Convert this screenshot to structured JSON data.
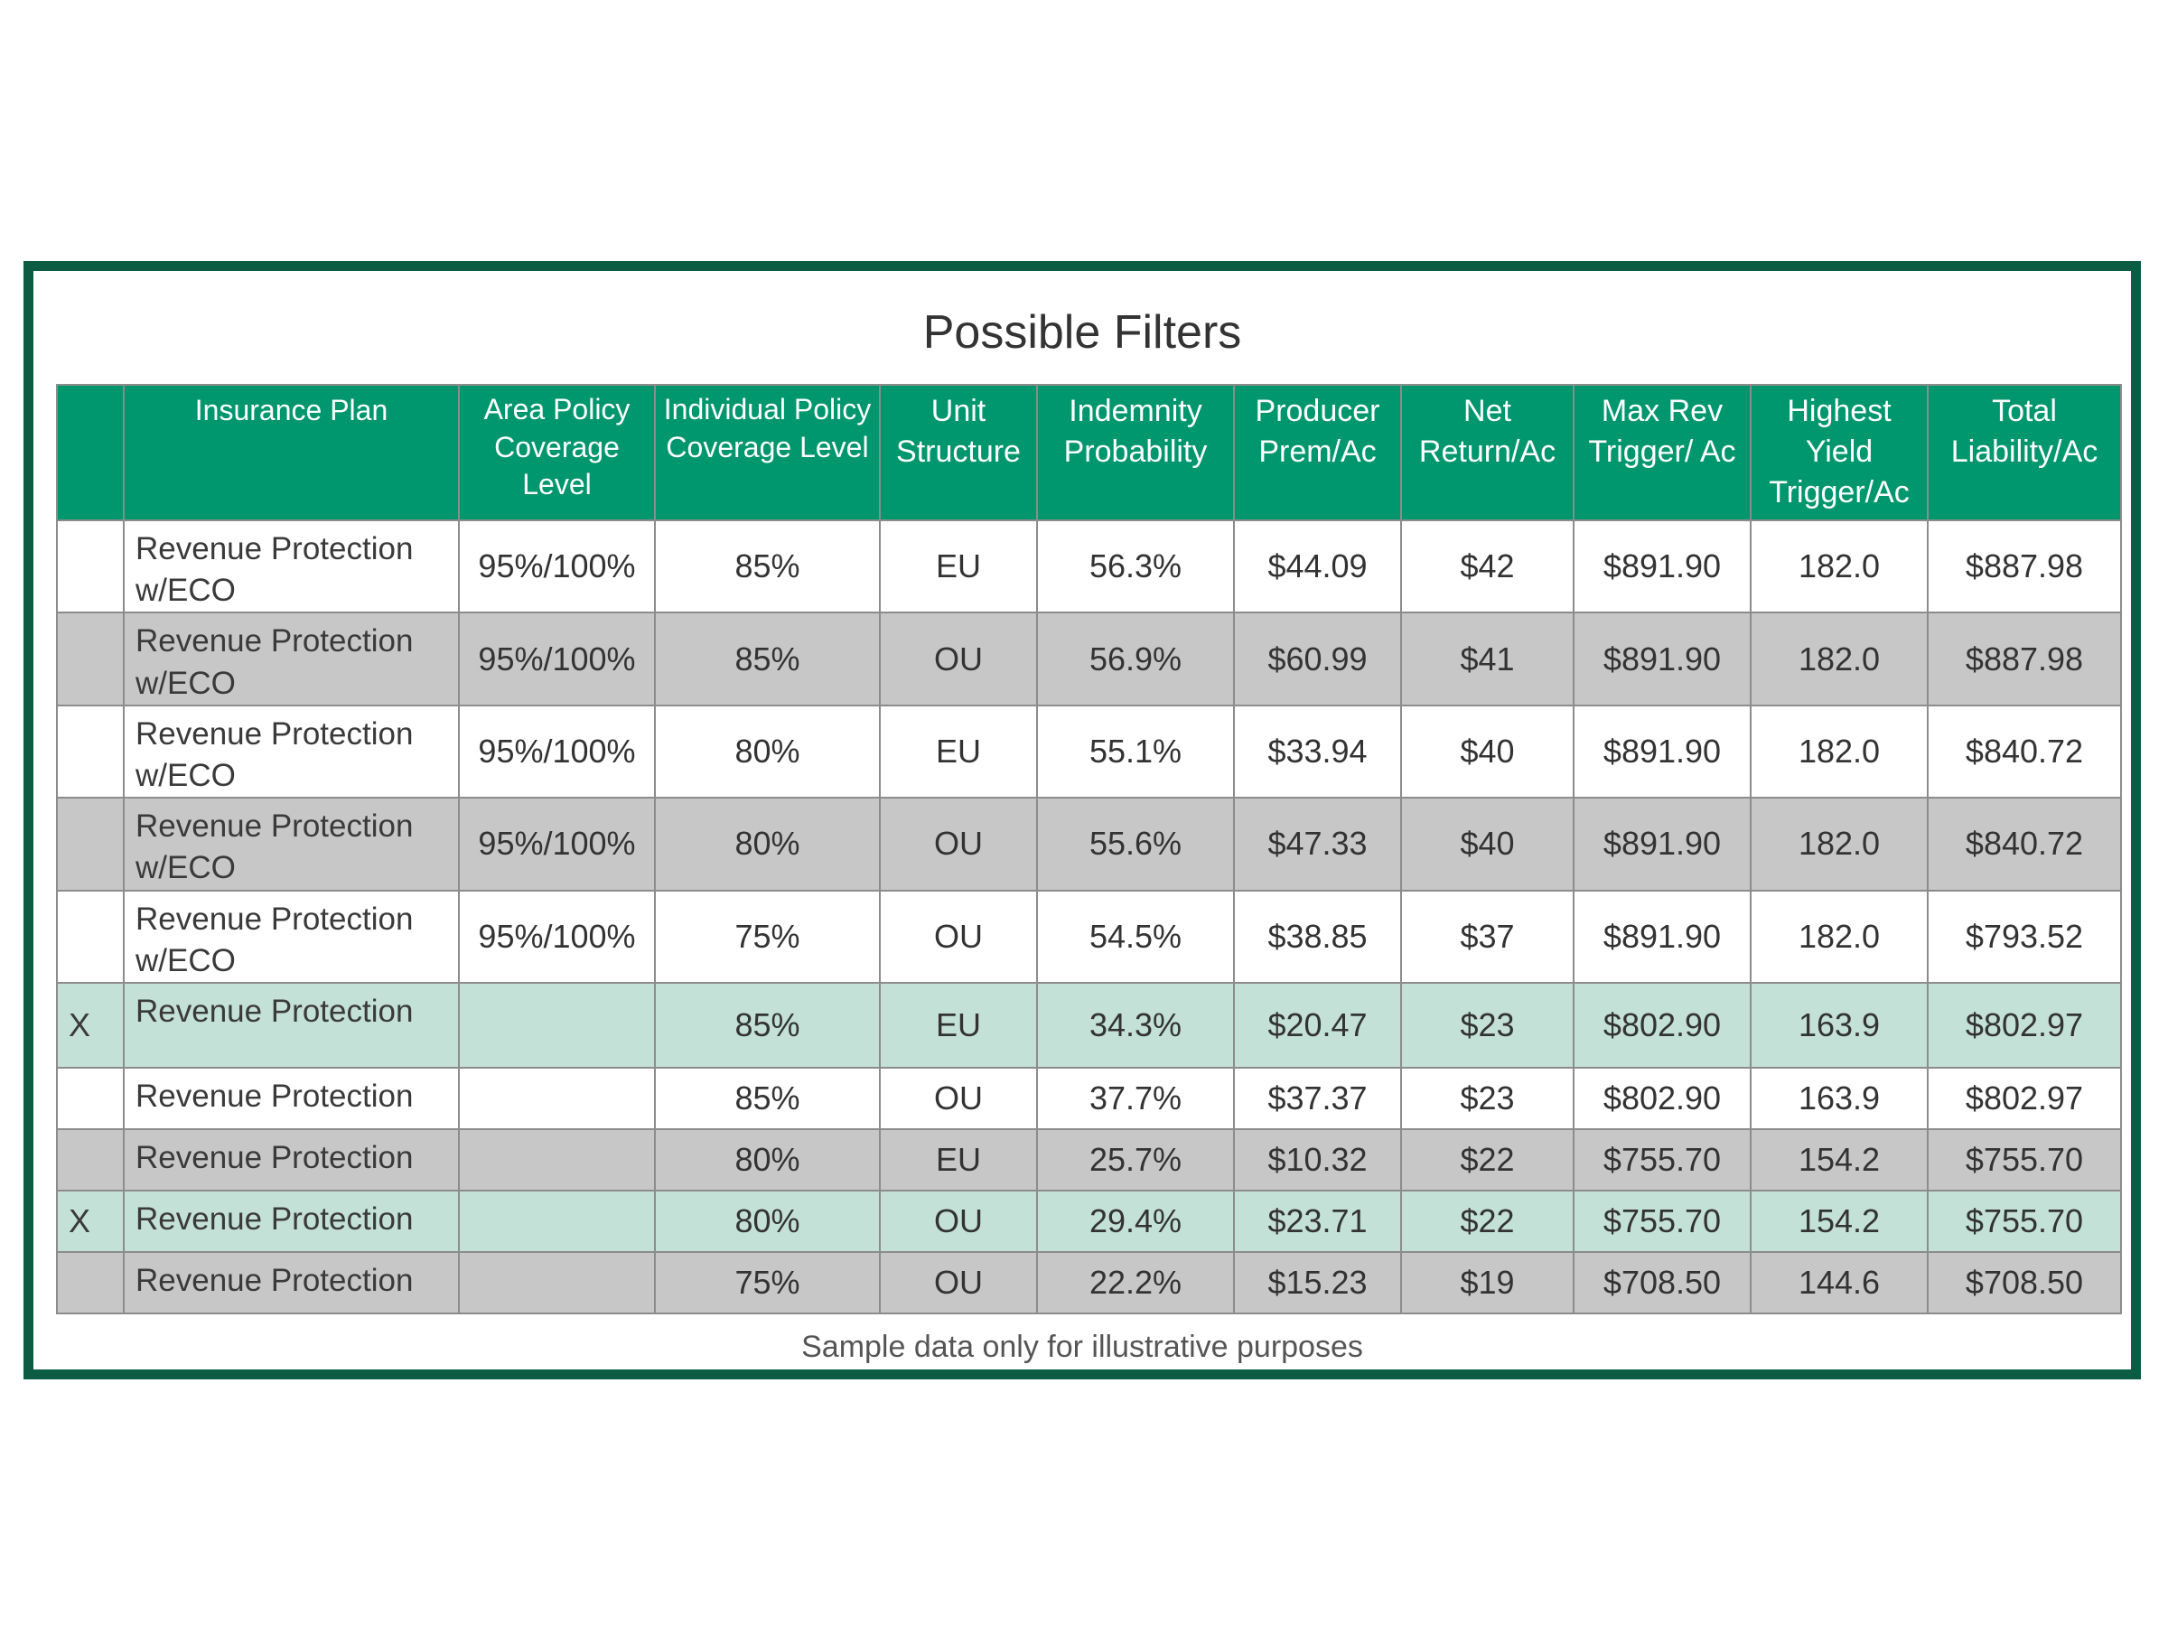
{
  "title": "Possible Filters",
  "footnote": "Sample data only for illustrative purposes",
  "colors": {
    "frame_border": "#0b5c42",
    "header_background": "#00966e",
    "row_white": "#ffffff",
    "row_gray": "#c8c7c7",
    "row_selected_green": "#c4e1d7"
  },
  "columns": [
    "",
    "Insurance Plan",
    "Area Policy Coverage Level",
    "Individual Policy Coverage Level",
    "Unit Structure",
    "Indemnity Probability",
    "Producer Prem/Ac",
    "Net Return/Ac",
    "Max Rev Trigger/ Ac",
    "Highest Yield Trigger/Ac",
    "Total Liability/Ac"
  ],
  "rows": [
    [
      "",
      "Revenue Protection w/ECO",
      "95%/100%",
      "85%",
      "EU",
      "56.3%",
      "$44.09",
      "$42",
      "$891.90",
      "182.0",
      "$887.98"
    ],
    [
      "",
      "Revenue Protection w/ECO",
      "95%/100%",
      "85%",
      "OU",
      "56.9%",
      "$60.99",
      "$41",
      "$891.90",
      "182.0",
      "$887.98"
    ],
    [
      "",
      "Revenue Protection w/ECO",
      "95%/100%",
      "80%",
      "EU",
      "55.1%",
      "$33.94",
      "$40",
      "$891.90",
      "182.0",
      "$840.72"
    ],
    [
      "",
      "Revenue Protection w/ECO",
      "95%/100%",
      "80%",
      "OU",
      "55.6%",
      "$47.33",
      "$40",
      "$891.90",
      "182.0",
      "$840.72"
    ],
    [
      "",
      "Revenue Protection w/ECO",
      "95%/100%",
      "75%",
      "OU",
      "54.5%",
      "$38.85",
      "$37",
      "$891.90",
      "182.0",
      "$793.52"
    ],
    [
      "X",
      "Revenue Protection",
      "",
      "85%",
      "EU",
      "34.3%",
      "$20.47",
      "$23",
      "$802.90",
      "163.9",
      "$802.97"
    ],
    [
      "",
      "Revenue Protection",
      "",
      "85%",
      "OU",
      "37.7%",
      "$37.37",
      "$23",
      "$802.90",
      "163.9",
      "$802.97"
    ],
    [
      "",
      "Revenue Protection",
      "",
      "80%",
      "EU",
      "25.7%",
      "$10.32",
      "$22",
      "$755.70",
      "154.2",
      "$755.70"
    ],
    [
      "X",
      "Revenue Protection",
      "",
      "80%",
      "OU",
      "29.4%",
      "$23.71",
      "$22",
      "$755.70",
      "154.2",
      "$755.70"
    ],
    [
      "",
      "Revenue Protection",
      "",
      "75%",
      "OU",
      "22.2%",
      "$15.23",
      "$19",
      "$708.50",
      "144.6",
      "$708.50"
    ]
  ]
}
